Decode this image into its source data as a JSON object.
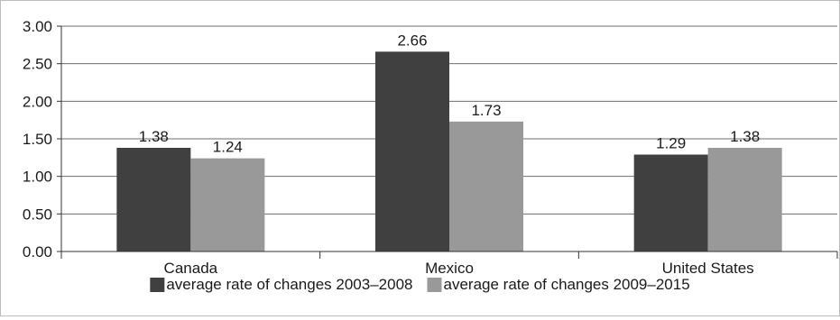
{
  "chart_data": {
    "type": "bar",
    "categories": [
      "Canada",
      "Mexico",
      "United States"
    ],
    "series": [
      {
        "name": "average rate of changes 2003–2008",
        "color": "#404040",
        "values": [
          1.38,
          2.66,
          1.29
        ],
        "labels": [
          "1.38",
          "2.66",
          "1.29"
        ]
      },
      {
        "name": "average rate of changes 2009–2015",
        "color": "#999999",
        "values": [
          1.24,
          1.73,
          1.38
        ],
        "labels": [
          "1.24",
          "1.73",
          "1.38"
        ]
      }
    ],
    "yticks": [
      "0.00",
      "0.50",
      "1.00",
      "1.50",
      "2.00",
      "2.50",
      "3.00"
    ],
    "ylim": [
      0,
      3
    ],
    "grid": true,
    "legend_position": "bottom",
    "title": "",
    "xlabel": "",
    "ylabel": ""
  }
}
